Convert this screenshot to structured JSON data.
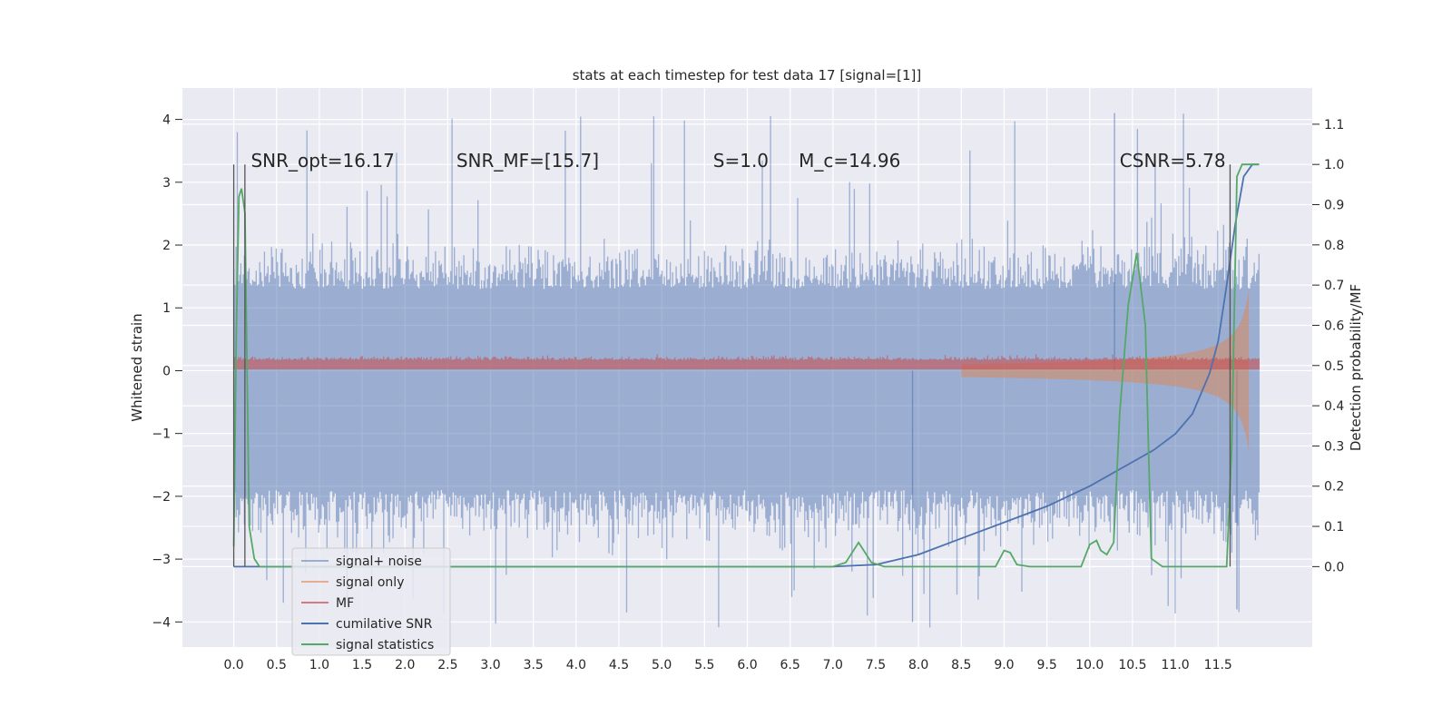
{
  "chart_data": {
    "type": "line",
    "title": "stats at each timestep for test data 17 [signal=[1]]",
    "ylabel_left": "Whitened strain",
    "ylabel_right": "Detection probability/MF",
    "x_ticks": [
      "0.0",
      "0.5",
      "1.0",
      "1.5",
      "2.0",
      "2.5",
      "3.0",
      "3.5",
      "4.0",
      "4.5",
      "5.0",
      "5.5",
      "6.0",
      "6.5",
      "7.0",
      "7.5",
      "8.0",
      "8.5",
      "9.0",
      "9.5",
      "10.0",
      "10.5",
      "11.0",
      "11.5"
    ],
    "x_tick_values": [
      0.0,
      0.5,
      1.0,
      1.5,
      2.0,
      2.5,
      3.0,
      3.5,
      4.0,
      4.5,
      5.0,
      5.5,
      6.0,
      6.5,
      7.0,
      7.5,
      8.0,
      8.5,
      9.0,
      9.5,
      10.0,
      10.5,
      11.0,
      11.5
    ],
    "xlim": [
      -0.6,
      12.6
    ],
    "y_left_ticks": [
      "−4",
      "−3",
      "−2",
      "−1",
      "0",
      "1",
      "2",
      "3",
      "4"
    ],
    "y_left_tick_values": [
      -4,
      -3,
      -2,
      -1,
      0,
      1,
      2,
      3,
      4
    ],
    "ylim_left": [
      -4.4,
      4.5
    ],
    "y_right_ticks": [
      "0.0",
      "0.1",
      "0.2",
      "0.3",
      "0.4",
      "0.5",
      "0.6",
      "0.7",
      "0.8",
      "0.9",
      "1.0",
      "1.1"
    ],
    "y_right_tick_values": [
      0.0,
      0.1,
      0.2,
      0.3,
      0.4,
      0.5,
      0.6,
      0.7,
      0.8,
      0.9,
      1.0,
      1.1
    ],
    "ylim_right": [
      -0.2,
      1.19
    ],
    "grid": true,
    "legend_position": "lower-left",
    "annotations": [
      {
        "text": "SNR_opt=16.17",
        "x": 0.2
      },
      {
        "text": "SNR_MF=[15.7]",
        "x": 2.6
      },
      {
        "text": "S=1.0",
        "x": 5.6
      },
      {
        "text": "M_c=14.96",
        "x": 6.6
      },
      {
        "text": "CSNR=5.78",
        "x": 10.35
      }
    ],
    "vertical_markers": [
      0.0,
      0.13,
      11.64
    ],
    "series": [
      {
        "name": "signal+ noise",
        "color": "#4c72b0",
        "axis": "left",
        "style": "noise_band",
        "envelope_lo": -1.9,
        "envelope_hi": 1.3,
        "extreme_min": -4.0,
        "extreme_max": 4.1,
        "x_range": [
          0.0,
          11.98
        ]
      },
      {
        "name": "signal only",
        "color": "#dd8452",
        "axis": "left",
        "style": "chirp",
        "x_range": [
          8.5,
          11.98
        ],
        "peak_amplitude": 1.3
      },
      {
        "name": "MF",
        "color": "#c44e52",
        "axis": "left",
        "style": "band",
        "level": 0.12,
        "x_range": [
          0.0,
          11.98
        ]
      },
      {
        "name": "cumilative SNR",
        "color": "#4c72b0",
        "axis": "right",
        "x": [
          0.0,
          7.0,
          7.5,
          8.0,
          8.5,
          9.0,
          9.5,
          10.0,
          10.5,
          10.75,
          11.0,
          11.2,
          11.4,
          11.5,
          11.6,
          11.7,
          11.8,
          11.9,
          11.98
        ],
        "y": [
          0.0,
          0.0,
          0.005,
          0.03,
          0.07,
          0.11,
          0.15,
          0.2,
          0.26,
          0.29,
          0.33,
          0.38,
          0.48,
          0.56,
          0.7,
          0.85,
          0.97,
          1.0,
          1.0
        ]
      },
      {
        "name": "signal statistics",
        "color": "#55a868",
        "axis": "right",
        "x": [
          0.0,
          0.03,
          0.06,
          0.09,
          0.13,
          0.18,
          0.24,
          0.3,
          7.0,
          7.15,
          7.3,
          7.45,
          7.6,
          8.9,
          9.0,
          9.07,
          9.15,
          9.3,
          9.9,
          10.0,
          10.08,
          10.13,
          10.2,
          10.28,
          10.35,
          10.45,
          10.55,
          10.65,
          10.72,
          10.85,
          11.6,
          11.66,
          11.72,
          11.78,
          11.85,
          11.98
        ],
        "y": [
          0.05,
          0.58,
          0.92,
          0.94,
          0.88,
          0.1,
          0.02,
          0.0,
          0.0,
          0.01,
          0.06,
          0.01,
          0.0,
          0.0,
          0.04,
          0.035,
          0.005,
          0.0,
          0.0,
          0.055,
          0.065,
          0.04,
          0.03,
          0.06,
          0.38,
          0.65,
          0.78,
          0.6,
          0.02,
          0.0,
          0.0,
          0.3,
          0.97,
          1.0,
          1.0,
          1.0
        ]
      }
    ]
  }
}
